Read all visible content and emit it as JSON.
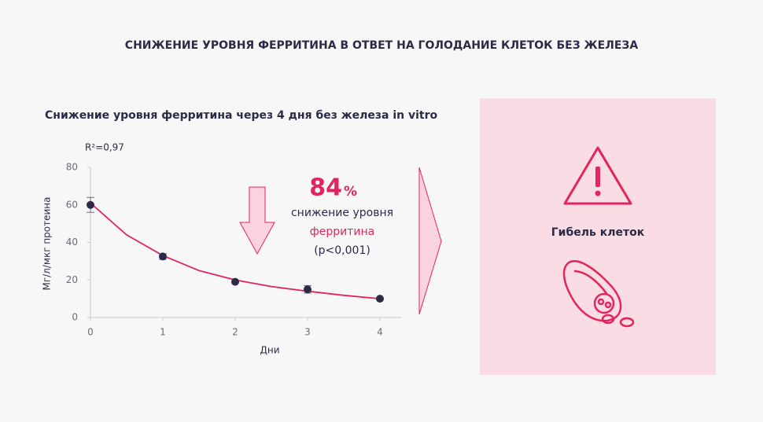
{
  "chart_data": {
    "type": "scatter",
    "title": "СНИЖЕНИЕ УРОВНЯ ФЕРРИТИНА В ОТВЕТ НА ГОЛОДАНИЕ КЛЕТОК БЕЗ ЖЕЛЕЗА",
    "subtitle": "Снижение уровня ферритина через 4 дня без железа in vitro",
    "r_squared": "R²=0,97",
    "x_label": "Дни",
    "y_label": "Мг/л/мкг протеина",
    "xlim": [
      0,
      4.3
    ],
    "xticks": [
      0,
      1,
      2,
      3,
      4
    ],
    "ylim": [
      0,
      80
    ],
    "yticks": [
      0,
      20,
      40,
      60,
      80
    ],
    "series": [
      {
        "color": "#2b2b47",
        "x": [
          0,
          1,
          2,
          3,
          4
        ],
        "values": [
          60,
          32.5,
          19,
          15,
          10
        ],
        "errors": [
          4,
          1.5,
          0,
          2,
          0
        ]
      },
      {
        "color": "#e3245e",
        "x": [
          0,
          0.5,
          1,
          1.5,
          2,
          2.5,
          3,
          3.5,
          4
        ],
        "values": [
          61,
          44,
          33,
          25,
          20,
          16.5,
          14,
          11.8,
          10
        ]
      }
    ],
    "annotation": {
      "value": "84",
      "unit": "%",
      "line1": "снижение уровня",
      "line2": "ферритина",
      "line3": "(p<0,001)"
    },
    "panel_label": "Гибель клеток"
  }
}
